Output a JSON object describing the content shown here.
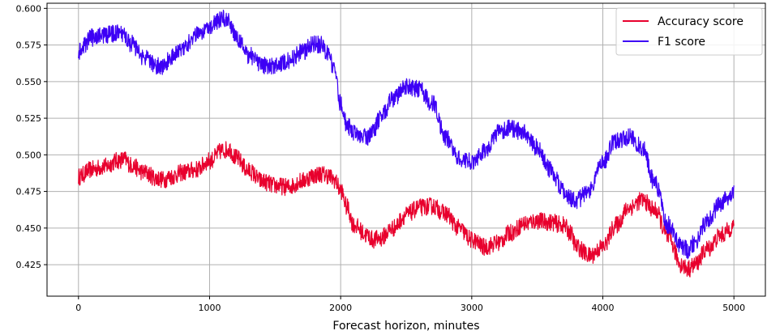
{
  "chart_data": {
    "type": "line",
    "title": "",
    "xlabel": "Forecast horizon, minutes",
    "ylabel": "",
    "xlim": [
      -240,
      5240
    ],
    "ylim": [
      0.4035,
      0.6035
    ],
    "xticks": [
      0,
      1000,
      2000,
      3000,
      4000,
      5000
    ],
    "xtick_labels": [
      "0",
      "1000",
      "2000",
      "3000",
      "4000",
      "5000"
    ],
    "yticks": [
      0.425,
      0.45,
      0.475,
      0.5,
      0.525,
      0.55,
      0.575,
      0.6
    ],
    "ytick_labels": [
      "0.425",
      "0.450",
      "0.475",
      "0.500",
      "0.525",
      "0.550",
      "0.575",
      "0.600"
    ],
    "grid": true,
    "legend_position": "top-right",
    "x": [
      0,
      100,
      200,
      300,
      350,
      400,
      500,
      600,
      650,
      700,
      800,
      900,
      1000,
      1100,
      1150,
      1200,
      1300,
      1400,
      1500,
      1600,
      1700,
      1800,
      1850,
      1900,
      1950,
      2000,
      2050,
      2100,
      2200,
      2250,
      2300,
      2400,
      2500,
      2600,
      2700,
      2800,
      2900,
      3000,
      3100,
      3200,
      3300,
      3400,
      3500,
      3600,
      3700,
      3750,
      3800,
      3900,
      4000,
      4100,
      4200,
      4300,
      4400,
      4500,
      4600,
      4650,
      4700,
      4800,
      4900,
      5000
    ],
    "series": [
      {
        "name": "Accuracy score",
        "color": "#e8002d",
        "values": [
          0.485,
          0.49,
          0.492,
          0.496,
          0.497,
          0.493,
          0.488,
          0.484,
          0.483,
          0.485,
          0.488,
          0.49,
          0.496,
          0.503,
          0.504,
          0.498,
          0.489,
          0.482,
          0.479,
          0.478,
          0.482,
          0.486,
          0.487,
          0.486,
          0.483,
          0.476,
          0.464,
          0.452,
          0.445,
          0.442,
          0.443,
          0.45,
          0.459,
          0.464,
          0.465,
          0.46,
          0.45,
          0.442,
          0.437,
          0.44,
          0.447,
          0.453,
          0.455,
          0.454,
          0.452,
          0.447,
          0.437,
          0.431,
          0.437,
          0.452,
          0.464,
          0.469,
          0.462,
          0.443,
          0.425,
          0.422,
          0.425,
          0.436,
          0.445,
          0.451
        ]
      },
      {
        "name": "F1 score",
        "color": "#3d00f5",
        "values": [
          0.57,
          0.58,
          0.582,
          0.583,
          0.581,
          0.576,
          0.566,
          0.561,
          0.56,
          0.566,
          0.574,
          0.582,
          0.588,
          0.593,
          0.591,
          0.58,
          0.568,
          0.561,
          0.561,
          0.564,
          0.57,
          0.576,
          0.575,
          0.57,
          0.558,
          0.535,
          0.52,
          0.515,
          0.512,
          0.516,
          0.525,
          0.538,
          0.546,
          0.545,
          0.535,
          0.512,
          0.498,
          0.495,
          0.503,
          0.515,
          0.518,
          0.515,
          0.505,
          0.49,
          0.475,
          0.47,
          0.469,
          0.476,
          0.495,
          0.51,
          0.512,
          0.505,
          0.48,
          0.452,
          0.437,
          0.435,
          0.44,
          0.455,
          0.467,
          0.475
        ]
      }
    ]
  }
}
